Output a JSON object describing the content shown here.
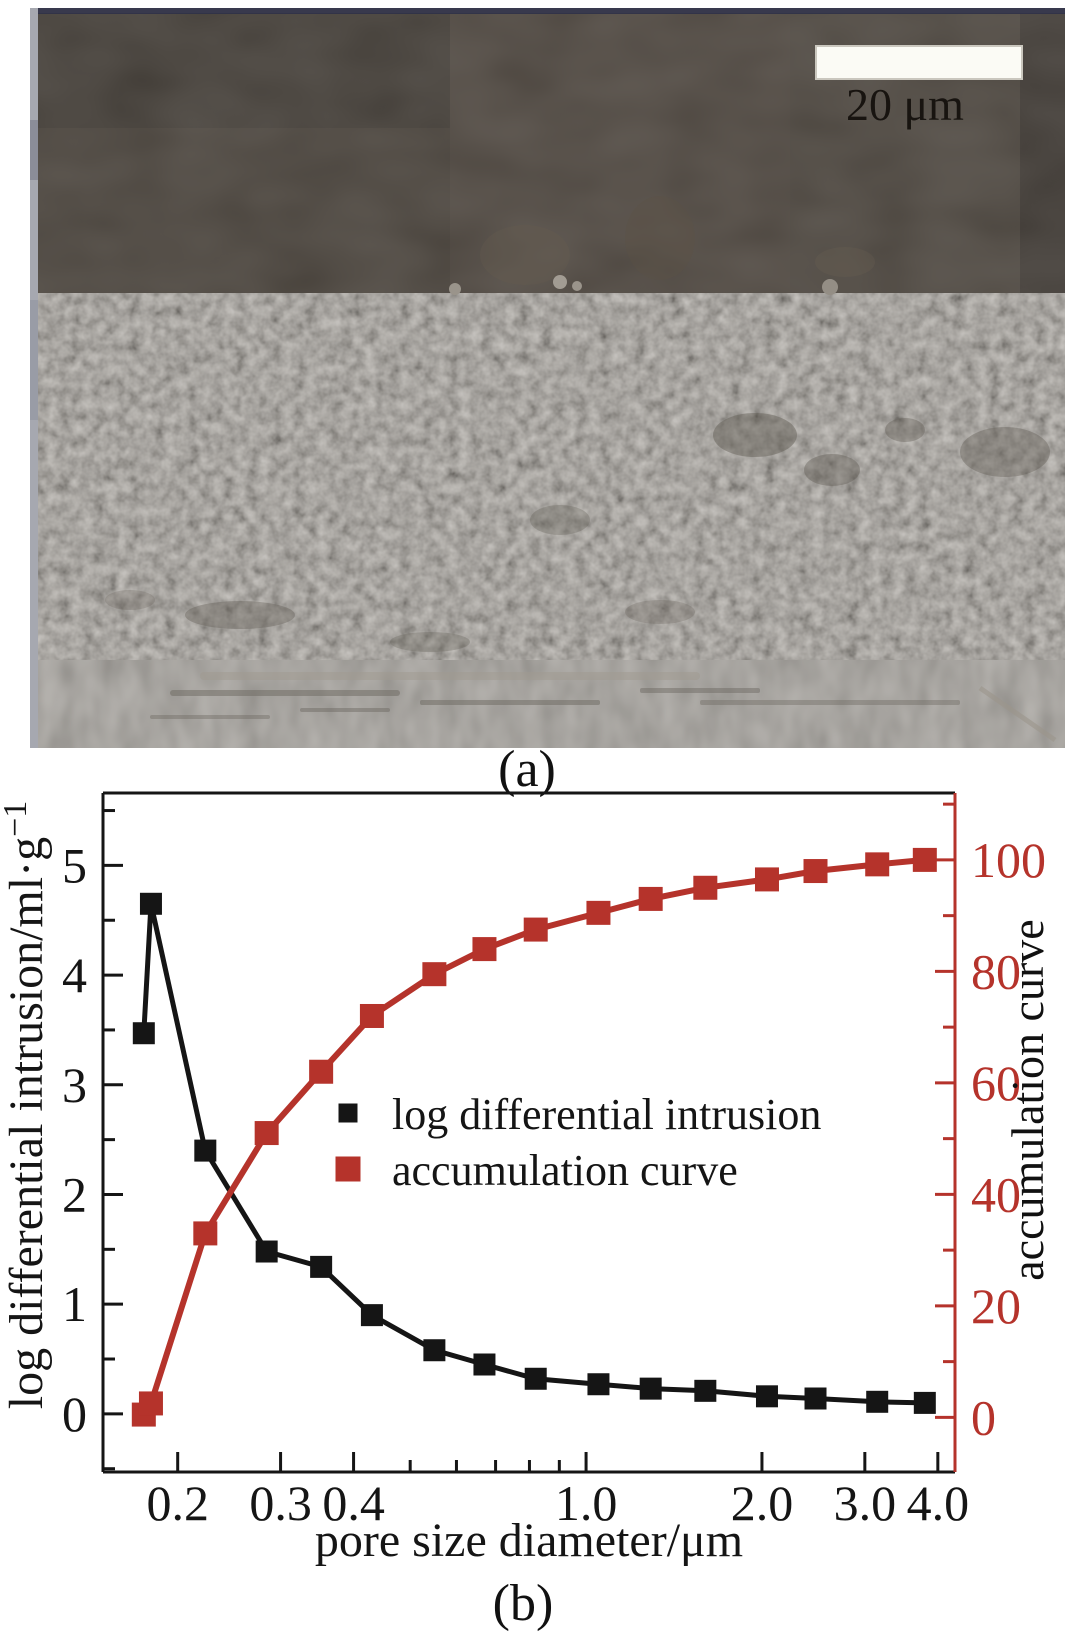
{
  "page": {
    "background": "#ffffff"
  },
  "figure_a": {
    "panel_label": "(a)",
    "scale_bar_text": "20 μm"
  },
  "figure_b": {
    "panel_label": "(b)"
  },
  "chart_data": {
    "type": "line",
    "title": "",
    "x": [
      0.175,
      0.18,
      0.223,
      0.284,
      0.352,
      0.43,
      0.55,
      0.67,
      0.82,
      1.05,
      1.29,
      1.6,
      2.04,
      2.47,
      3.15,
      3.8
    ],
    "series": [
      {
        "name": "log differential intrusion",
        "axis": "left",
        "color": "#151515",
        "marker": "square",
        "values": [
          3.47,
          4.65,
          2.4,
          1.48,
          1.34,
          0.9,
          0.58,
          0.45,
          0.32,
          0.27,
          0.23,
          0.21,
          0.16,
          0.14,
          0.11,
          0.1
        ]
      },
      {
        "name": "accumulation curve",
        "axis": "right",
        "color": "#b5332b",
        "marker": "square",
        "values": [
          0.5,
          2.5,
          33,
          51,
          62,
          72,
          79.5,
          84,
          87.5,
          90.5,
          93,
          95,
          96.5,
          98,
          99.2,
          100
        ]
      }
    ],
    "x_axis": {
      "label": "pore size diameter/μm",
      "scale": "log",
      "range": [
        0.149,
        4.28
      ],
      "major_ticks": [
        0.2,
        0.3,
        0.4,
        1.0,
        2.0,
        3.0,
        4.0
      ],
      "tick_labels": [
        "0.2",
        "0.3",
        "0.4",
        "1.0",
        "2.0",
        "3.0",
        "4.0"
      ],
      "minor_ticks": [
        0.5,
        0.6,
        0.7,
        0.8,
        0.9
      ]
    },
    "y_axis_left": {
      "label": "log differential intrusion/ml·g",
      "label_sup": "−1",
      "range": [
        -0.53,
        5.66
      ],
      "major_ticks": [
        0,
        1,
        2,
        3,
        4,
        5
      ],
      "minor_step": 0.5,
      "color": "#151515"
    },
    "y_axis_right": {
      "label": "accumulation curve",
      "range": [
        -9.8,
        112
      ],
      "major_ticks": [
        0,
        20,
        40,
        60,
        80,
        100
      ],
      "minor_step": 10,
      "color": "#b5332b"
    },
    "legend": {
      "position": "center",
      "entries": [
        "log differential intrusion",
        "accumulation curve"
      ]
    },
    "grid": false
  }
}
